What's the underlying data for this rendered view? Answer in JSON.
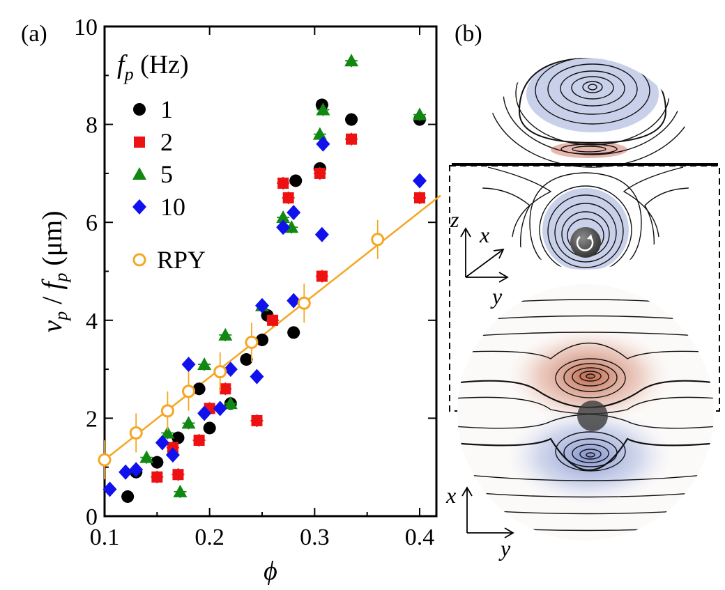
{
  "panel_a": {
    "label": "(a)"
  },
  "panel_b": {
    "label": "(b)",
    "axes_top": {
      "z": "z",
      "x": "x",
      "y": "y"
    },
    "axes_bottom": {
      "x": "x",
      "y": "y"
    }
  },
  "chart_data": {
    "type": "scatter",
    "title": "",
    "xlabel": "ϕ",
    "ylabel_parts": [
      "v",
      "p",
      " / ",
      "f",
      "p",
      " (μm)"
    ],
    "xlim": [
      0.1,
      0.42
    ],
    "ylim": [
      0,
      10
    ],
    "xticks": [
      0.1,
      0.2,
      0.3,
      0.4
    ],
    "xtick_labels": [
      "0.1",
      "0.2",
      "0.3",
      "0.4"
    ],
    "yticks": [
      0,
      2,
      4,
      6,
      8,
      10
    ],
    "ytick_labels": [
      "0",
      "2",
      "4",
      "6",
      "8",
      "10"
    ],
    "legend": {
      "title": "f",
      "title_sub": "p",
      "title_unit": " (Hz)",
      "placement": "top-left"
    },
    "series": [
      {
        "name": "1",
        "color": "#000000",
        "marker": "circle",
        "points": [
          {
            "x": 0.122,
            "y": 0.4
          },
          {
            "x": 0.13,
            "y": 0.9
          },
          {
            "x": 0.15,
            "y": 1.1
          },
          {
            "x": 0.17,
            "y": 1.6
          },
          {
            "x": 0.19,
            "y": 2.6
          },
          {
            "x": 0.2,
            "y": 1.8
          },
          {
            "x": 0.22,
            "y": 2.3
          },
          {
            "x": 0.235,
            "y": 3.2
          },
          {
            "x": 0.25,
            "y": 3.6
          },
          {
            "x": 0.255,
            "y": 4.1
          },
          {
            "x": 0.28,
            "y": 3.75
          },
          {
            "x": 0.282,
            "y": 6.85
          },
          {
            "x": 0.305,
            "y": 7.1
          },
          {
            "x": 0.307,
            "y": 8.4
          },
          {
            "x": 0.335,
            "y": 8.1
          },
          {
            "x": 0.4,
            "y": 8.1
          }
        ]
      },
      {
        "name": "2",
        "color": "#ee1111",
        "marker": "square",
        "points": [
          {
            "x": 0.15,
            "y": 0.8
          },
          {
            "x": 0.165,
            "y": 1.4
          },
          {
            "x": 0.17,
            "y": 0.85
          },
          {
            "x": 0.19,
            "y": 1.55
          },
          {
            "x": 0.2,
            "y": 2.2
          },
          {
            "x": 0.215,
            "y": 2.6
          },
          {
            "x": 0.245,
            "y": 1.95
          },
          {
            "x": 0.26,
            "y": 4.0
          },
          {
            "x": 0.27,
            "y": 6.8
          },
          {
            "x": 0.275,
            "y": 6.5
          },
          {
            "x": 0.305,
            "y": 7.0
          },
          {
            "x": 0.307,
            "y": 4.9
          },
          {
            "x": 0.335,
            "y": 7.7
          },
          {
            "x": 0.4,
            "y": 6.5
          }
        ]
      },
      {
        "name": "5",
        "color": "#118811",
        "marker": "triangle",
        "points": [
          {
            "x": 0.14,
            "y": 1.2
          },
          {
            "x": 0.16,
            "y": 1.7
          },
          {
            "x": 0.172,
            "y": 0.5
          },
          {
            "x": 0.18,
            "y": 1.9
          },
          {
            "x": 0.195,
            "y": 3.1
          },
          {
            "x": 0.215,
            "y": 3.7
          },
          {
            "x": 0.22,
            "y": 2.3
          },
          {
            "x": 0.25,
            "y": 4.3
          },
          {
            "x": 0.27,
            "y": 6.1
          },
          {
            "x": 0.278,
            "y": 5.9
          },
          {
            "x": 0.305,
            "y": 7.8
          },
          {
            "x": 0.308,
            "y": 8.3
          },
          {
            "x": 0.335,
            "y": 9.3
          },
          {
            "x": 0.4,
            "y": 8.2
          }
        ]
      },
      {
        "name": "10",
        "color": "#1111ee",
        "marker": "diamond",
        "points": [
          {
            "x": 0.105,
            "y": 0.55
          },
          {
            "x": 0.12,
            "y": 0.9
          },
          {
            "x": 0.13,
            "y": 0.95
          },
          {
            "x": 0.155,
            "y": 1.5
          },
          {
            "x": 0.165,
            "y": 1.25
          },
          {
            "x": 0.18,
            "y": 3.1
          },
          {
            "x": 0.195,
            "y": 2.1
          },
          {
            "x": 0.21,
            "y": 2.2
          },
          {
            "x": 0.22,
            "y": 3.0
          },
          {
            "x": 0.245,
            "y": 2.85
          },
          {
            "x": 0.25,
            "y": 4.3
          },
          {
            "x": 0.27,
            "y": 5.9
          },
          {
            "x": 0.28,
            "y": 4.4
          },
          {
            "x": 0.28,
            "y": 6.2
          },
          {
            "x": 0.307,
            "y": 5.75
          },
          {
            "x": 0.308,
            "y": 7.6
          },
          {
            "x": 0.4,
            "y": 6.85
          }
        ]
      },
      {
        "name": "RPY",
        "color": "#f5a623",
        "marker": "open-circle",
        "line": true,
        "points": [
          {
            "x": 0.1,
            "y": 1.15
          },
          {
            "x": 0.13,
            "y": 1.7
          },
          {
            "x": 0.16,
            "y": 2.15
          },
          {
            "x": 0.18,
            "y": 2.55
          },
          {
            "x": 0.21,
            "y": 2.95
          },
          {
            "x": 0.24,
            "y": 3.55
          },
          {
            "x": 0.29,
            "y": 4.35
          },
          {
            "x": 0.36,
            "y": 5.65
          }
        ],
        "fit": [
          {
            "x": 0.1,
            "y": 1.15
          },
          {
            "x": 0.42,
            "y": 6.55
          }
        ]
      }
    ]
  }
}
